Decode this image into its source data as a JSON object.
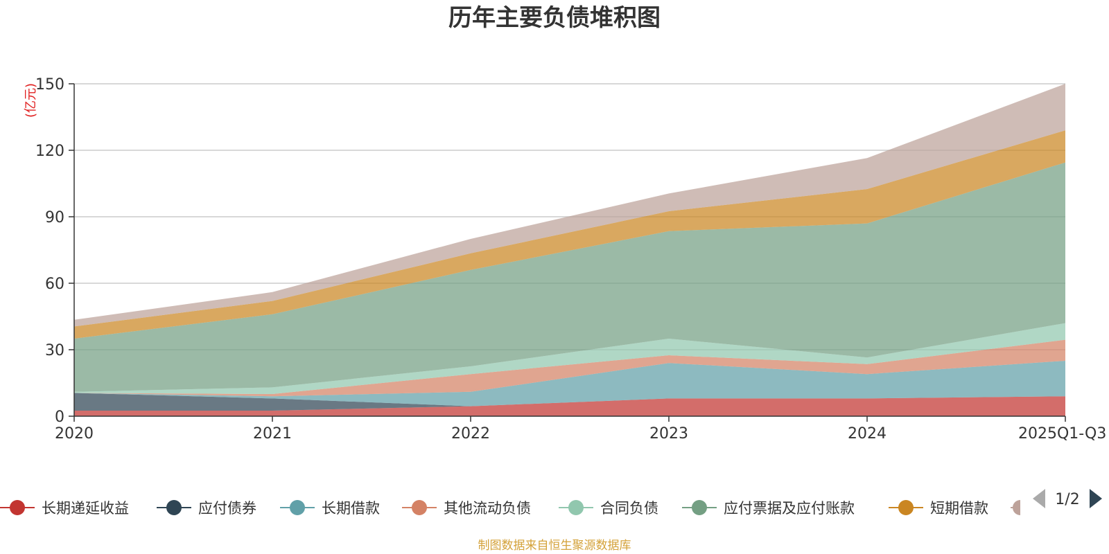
{
  "chart_data": {
    "type": "area",
    "stacked": true,
    "title": "历年主要负债堆积图",
    "ylabel": "(亿元)",
    "xlabel": "",
    "ylim": [
      0,
      150
    ],
    "yticks": [
      0,
      30,
      60,
      90,
      120,
      150
    ],
    "categories": [
      "2020",
      "2021",
      "2022",
      "2023",
      "2024",
      "2025Q1-Q3"
    ],
    "grid": true,
    "legend_position": "bottom",
    "series": [
      {
        "name": "长期递延收益",
        "color": "#c23531",
        "values": [
          2.5,
          2.5,
          4.5,
          8.0,
          8.0,
          9.0
        ]
      },
      {
        "name": "应付债券",
        "color": "#2f4554",
        "values": [
          8.0,
          5.5,
          0,
          0,
          0,
          0
        ]
      },
      {
        "name": "长期借款",
        "color": "#61a0a8",
        "values": [
          0,
          1.0,
          6.5,
          16.0,
          11.0,
          16.0
        ]
      },
      {
        "name": "其他流动负债",
        "color": "#d48265",
        "values": [
          0,
          1.0,
          8.0,
          3.5,
          4.5,
          9.5
        ]
      },
      {
        "name": "合同负债",
        "color": "#91c7ae",
        "values": [
          0.5,
          3.0,
          3.5,
          7.5,
          3.0,
          7.5
        ]
      },
      {
        "name": "应付票据及应付账款",
        "color": "#749f83",
        "values": [
          24.0,
          33.0,
          43.5,
          48.5,
          60.5,
          72.5
        ]
      },
      {
        "name": "短期借款",
        "color": "#ca8622",
        "values": [
          5.5,
          6.0,
          7.5,
          9.0,
          15.5,
          14.5
        ]
      },
      {
        "name": "",
        "color": "#bda29a",
        "values": [
          3.0,
          4.0,
          6.5,
          8.0,
          14.0,
          21.0
        ]
      }
    ]
  },
  "legend": {
    "page": "1/2"
  },
  "footer": {
    "source": "制图数据来自恒生聚源数据库"
  }
}
